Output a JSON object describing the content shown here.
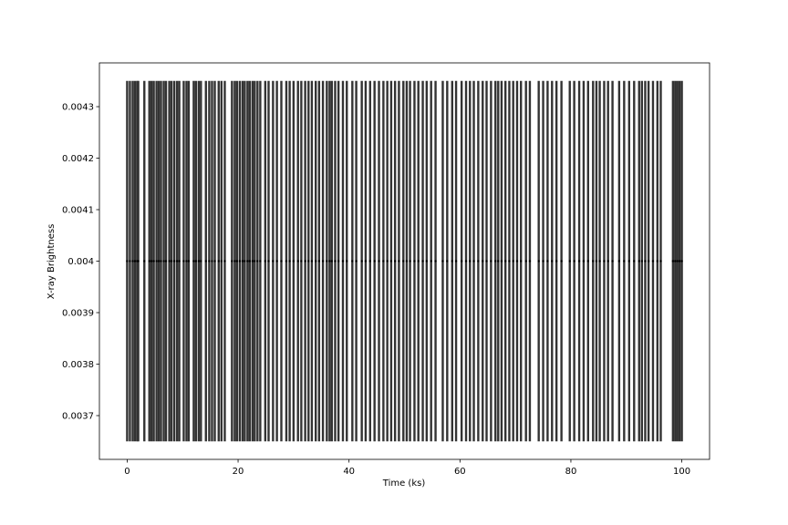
{
  "chart_data": {
    "type": "errorbar",
    "xlabel": "Time (ks)",
    "ylabel": "X-ray Brightness",
    "xlim": [
      -5,
      105
    ],
    "ylim": [
      0.003615,
      0.004385
    ],
    "xticks": [
      0,
      20,
      40,
      60,
      80,
      100
    ],
    "yticks": [
      0.0037,
      0.0038,
      0.0039,
      0.004,
      0.0041,
      0.0042,
      0.0043
    ],
    "color": "#333333",
    "marker_color": "#000000",
    "x": [
      0,
      0.5,
      1.0,
      1.4,
      1.8,
      2.0,
      3.1,
      4.0,
      4.4,
      4.8,
      5.3,
      5.7,
      6.1,
      6.6,
      7.0,
      7.6,
      8.0,
      8.5,
      9.0,
      9.4,
      10.2,
      10.7,
      11.1,
      12.0,
      12.4,
      12.9,
      13.3,
      14.2,
      14.8,
      15.3,
      15.8,
      16.5,
      17.0,
      17.6,
      18.9,
      19.4,
      19.8,
      20.3,
      20.8,
      21.2,
      21.7,
      22.1,
      22.6,
      23.0,
      23.5,
      24.0,
      24.9,
      25.5,
      26.3,
      27.0,
      27.8,
      28.7,
      29.3,
      30.0,
      30.8,
      31.4,
      32.1,
      32.7,
      33.3,
      34.0,
      34.6,
      35.3,
      36.0,
      36.5,
      36.9,
      37.5,
      38.1,
      38.9,
      39.6,
      40.6,
      41.3,
      42.3,
      43.0,
      43.8,
      44.6,
      45.4,
      46.2,
      46.9,
      47.6,
      48.3,
      49.0,
      49.8,
      50.4,
      51.0,
      51.8,
      52.5,
      53.3,
      54.0,
      54.8,
      55.6,
      56.9,
      57.7,
      58.6,
      59.3,
      60.3,
      61.1,
      61.8,
      62.5,
      63.3,
      64.1,
      64.8,
      65.6,
      66.4,
      66.9,
      67.5,
      68.2,
      68.9,
      69.6,
      70.3,
      71.0,
      71.9,
      72.6,
      74.2,
      75.0,
      75.8,
      76.6,
      77.4,
      78.3,
      79.8,
      80.6,
      81.5,
      82.3,
      83.1,
      84.0,
      84.6,
      85.2,
      86.0,
      86.7,
      87.5,
      88.7,
      89.6,
      90.5,
      91.4,
      92.3,
      92.8,
      93.4,
      94.0,
      94.8,
      95.6,
      96.2,
      98.4,
      98.8,
      99.2,
      99.6,
      100.0
    ],
    "values": [
      0.004,
      0.004,
      0.004,
      0.004,
      0.004,
      0.004,
      0.004,
      0.004,
      0.004,
      0.004,
      0.004,
      0.004,
      0.004,
      0.004,
      0.004,
      0.004,
      0.004,
      0.004,
      0.004,
      0.004,
      0.004,
      0.004,
      0.004,
      0.004,
      0.004,
      0.004,
      0.004,
      0.004,
      0.004,
      0.004,
      0.004,
      0.004,
      0.004,
      0.004,
      0.004,
      0.004,
      0.004,
      0.004,
      0.004,
      0.004,
      0.004,
      0.004,
      0.004,
      0.004,
      0.004,
      0.004,
      0.004,
      0.004,
      0.004,
      0.004,
      0.004,
      0.004,
      0.004,
      0.004,
      0.004,
      0.004,
      0.004,
      0.004,
      0.004,
      0.004,
      0.004,
      0.004,
      0.004,
      0.004,
      0.004,
      0.004,
      0.004,
      0.004,
      0.004,
      0.004,
      0.004,
      0.004,
      0.004,
      0.004,
      0.004,
      0.004,
      0.004,
      0.004,
      0.004,
      0.004,
      0.004,
      0.004,
      0.004,
      0.004,
      0.004,
      0.004,
      0.004,
      0.004,
      0.004,
      0.004,
      0.004,
      0.004,
      0.004,
      0.004,
      0.004,
      0.004,
      0.004,
      0.004,
      0.004,
      0.004,
      0.004,
      0.004,
      0.004,
      0.004,
      0.004,
      0.004,
      0.004,
      0.004,
      0.004,
      0.004,
      0.004,
      0.004,
      0.004,
      0.004,
      0.004,
      0.004,
      0.004,
      0.004,
      0.004,
      0.004,
      0.004,
      0.004,
      0.004,
      0.004,
      0.004,
      0.004,
      0.004,
      0.004,
      0.004,
      0.004,
      0.004,
      0.004,
      0.004,
      0.004,
      0.004,
      0.004,
      0.004,
      0.004,
      0.004,
      0.004,
      0.004,
      0.004,
      0.004,
      0.004,
      0.004
    ],
    "errors": [
      0.00035,
      0.00035,
      0.00035,
      0.00035,
      0.00035,
      0.00035,
      0.00035,
      0.00035,
      0.00035,
      0.00035,
      0.00035,
      0.00035,
      0.00035,
      0.00035,
      0.00035,
      0.00035,
      0.00035,
      0.00035,
      0.00035,
      0.00035,
      0.00035,
      0.00035,
      0.00035,
      0.00035,
      0.00035,
      0.00035,
      0.00035,
      0.00035,
      0.00035,
      0.00035,
      0.00035,
      0.00035,
      0.00035,
      0.00035,
      0.00035,
      0.00035,
      0.00035,
      0.00035,
      0.00035,
      0.00035,
      0.00035,
      0.00035,
      0.00035,
      0.00035,
      0.00035,
      0.00035,
      0.00035,
      0.00035,
      0.00035,
      0.00035,
      0.00035,
      0.00035,
      0.00035,
      0.00035,
      0.00035,
      0.00035,
      0.00035,
      0.00035,
      0.00035,
      0.00035,
      0.00035,
      0.00035,
      0.00035,
      0.00035,
      0.00035,
      0.00035,
      0.00035,
      0.00035,
      0.00035,
      0.00035,
      0.00035,
      0.00035,
      0.00035,
      0.00035,
      0.00035,
      0.00035,
      0.00035,
      0.00035,
      0.00035,
      0.00035,
      0.00035,
      0.00035,
      0.00035,
      0.00035,
      0.00035,
      0.00035,
      0.00035,
      0.00035,
      0.00035,
      0.00035,
      0.00035,
      0.00035,
      0.00035,
      0.00035,
      0.00035,
      0.00035,
      0.00035,
      0.00035,
      0.00035,
      0.00035,
      0.00035,
      0.00035,
      0.00035,
      0.00035,
      0.00035,
      0.00035,
      0.00035,
      0.00035,
      0.00035,
      0.00035,
      0.00035,
      0.00035,
      0.00035,
      0.00035,
      0.00035,
      0.00035,
      0.00035,
      0.00035,
      0.00035,
      0.00035,
      0.00035,
      0.00035,
      0.00035,
      0.00035,
      0.00035,
      0.00035,
      0.00035,
      0.00035,
      0.00035,
      0.00035,
      0.00035,
      0.00035,
      0.00035,
      0.00035,
      0.00035,
      0.00035,
      0.00035,
      0.00035,
      0.00035,
      0.00035,
      0.00035,
      0.00035,
      0.00035,
      0.00035,
      0.00035
    ]
  }
}
